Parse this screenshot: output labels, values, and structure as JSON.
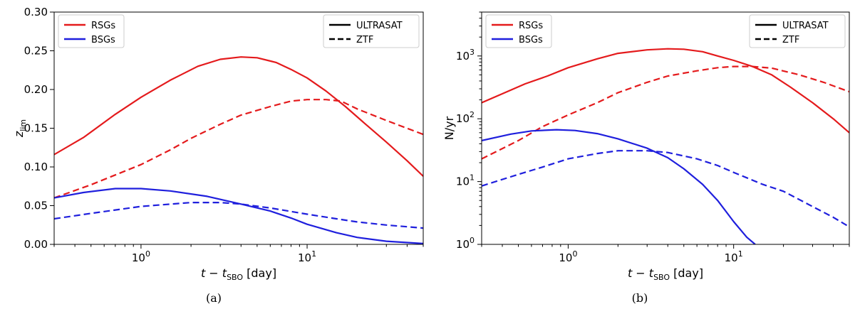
{
  "chart_data": [
    {
      "type": "line",
      "panel_caption": "(a)",
      "xlabel": {
        "main": "t − t",
        "sub": "SBO",
        "tail": " [day]"
      },
      "ylabel": {
        "main": "z",
        "sub": "lim"
      },
      "xscale": "log",
      "xlim": [
        0.3,
        50
      ],
      "yscale": "linear",
      "ylim": [
        0,
        0.3
      ],
      "yticks": [
        0.0,
        0.05,
        0.1,
        0.15,
        0.2,
        0.25,
        0.3
      ],
      "ytick_labels": [
        "0.00",
        "0.05",
        "0.10",
        "0.15",
        "0.20",
        "0.25",
        "0.30"
      ],
      "xticks": [
        {
          "value": 1,
          "base": "10",
          "exp": "0"
        },
        {
          "value": 10,
          "base": "10",
          "exp": "1"
        }
      ],
      "legend_color": {
        "position": "top-left",
        "entries": [
          {
            "label": "RSGs",
            "color": "#e41a1c"
          },
          {
            "label": "BSGs",
            "color": "#1f1fdd"
          }
        ]
      },
      "legend_style": {
        "position": "top-right",
        "entries": [
          {
            "label": "ULTRASAT",
            "dash": "solid"
          },
          {
            "label": "ZTF",
            "dash": "dashed"
          }
        ]
      },
      "series": [
        {
          "name": "RSGs",
          "instrument": "ULTRASAT",
          "color": "#e41a1c",
          "dash": "solid",
          "x": [
            0.3,
            0.45,
            0.7,
            1.0,
            1.5,
            2.2,
            3.0,
            4.0,
            5.0,
            6.5,
            8.0,
            10,
            13,
            17,
            22,
            30,
            40,
            50
          ],
          "y": [
            0.116,
            0.138,
            0.168,
            0.19,
            0.212,
            0.23,
            0.239,
            0.242,
            0.241,
            0.235,
            0.226,
            0.215,
            0.198,
            0.178,
            0.157,
            0.132,
            0.108,
            0.088
          ]
        },
        {
          "name": "RSGs",
          "instrument": "ZTF",
          "color": "#e41a1c",
          "dash": "dashed",
          "x": [
            0.3,
            0.5,
            1.0,
            1.5,
            2.0,
            3.0,
            4.0,
            6.0,
            8.0,
            10,
            13,
            16,
            20,
            30,
            50
          ],
          "y": [
            0.06,
            0.077,
            0.103,
            0.122,
            0.137,
            0.155,
            0.167,
            0.178,
            0.185,
            0.187,
            0.187,
            0.185,
            0.175,
            0.16,
            0.142
          ]
        },
        {
          "name": "BSGs",
          "instrument": "ULTRASAT",
          "color": "#1f1fdd",
          "dash": "solid",
          "x": [
            0.3,
            0.45,
            0.7,
            1.0,
            1.5,
            2.5,
            4.0,
            6.0,
            8.0,
            10,
            15,
            20,
            30,
            50
          ],
          "y": [
            0.06,
            0.067,
            0.072,
            0.072,
            0.069,
            0.062,
            0.052,
            0.043,
            0.034,
            0.026,
            0.015,
            0.009,
            0.004,
            0.001
          ]
        },
        {
          "name": "BSGs",
          "instrument": "ZTF",
          "color": "#1f1fdd",
          "dash": "dashed",
          "x": [
            0.3,
            0.5,
            1.0,
            2.0,
            3.0,
            4.0,
            6.0,
            10,
            15,
            20,
            30,
            50
          ],
          "y": [
            0.033,
            0.04,
            0.049,
            0.054,
            0.054,
            0.052,
            0.047,
            0.039,
            0.033,
            0.029,
            0.025,
            0.021
          ]
        }
      ]
    },
    {
      "type": "line",
      "panel_caption": "(b)",
      "xlabel": {
        "main": "t − t",
        "sub": "SBO",
        "tail": " [day]"
      },
      "ylabel": {
        "main": "N/yr",
        "sub": ""
      },
      "xscale": "log",
      "xlim": [
        0.3,
        50
      ],
      "yscale": "log",
      "ylim": [
        1,
        5000
      ],
      "yticks": [
        {
          "value": 1,
          "base": "10",
          "exp": "0"
        },
        {
          "value": 10,
          "base": "10",
          "exp": "1"
        },
        {
          "value": 100,
          "base": "10",
          "exp": "2"
        },
        {
          "value": 1000,
          "base": "10",
          "exp": "3"
        }
      ],
      "xticks": [
        {
          "value": 1,
          "base": "10",
          "exp": "0"
        },
        {
          "value": 10,
          "base": "10",
          "exp": "1"
        }
      ],
      "legend_color": {
        "position": "top-left",
        "entries": [
          {
            "label": "RSGs",
            "color": "#e41a1c"
          },
          {
            "label": "BSGs",
            "color": "#1f1fdd"
          }
        ]
      },
      "legend_style": {
        "position": "top-right",
        "entries": [
          {
            "label": "ULTRASAT",
            "dash": "solid"
          },
          {
            "label": "ZTF",
            "dash": "dashed"
          }
        ]
      },
      "series": [
        {
          "name": "RSGs",
          "instrument": "ULTRASAT",
          "color": "#e41a1c",
          "dash": "solid",
          "x": [
            0.3,
            0.4,
            0.55,
            0.75,
            1.0,
            1.5,
            2.0,
            3.0,
            4.0,
            5.0,
            6.5,
            8.0,
            10,
            13,
            17,
            22,
            30,
            40,
            50
          ],
          "y": [
            180,
            250,
            360,
            480,
            650,
            900,
            1100,
            1250,
            1300,
            1280,
            1170,
            1000,
            850,
            680,
            500,
            320,
            180,
            100,
            60
          ]
        },
        {
          "name": "RSGs",
          "instrument": "ZTF",
          "color": "#e41a1c",
          "dash": "dashed",
          "x": [
            0.3,
            0.5,
            0.7,
            1.0,
            1.5,
            2.0,
            3.0,
            4.0,
            6.0,
            8.0,
            10,
            13,
            17,
            25,
            35,
            50
          ],
          "y": [
            23,
            45,
            75,
            115,
            180,
            260,
            380,
            480,
            580,
            650,
            680,
            680,
            640,
            500,
            380,
            270
          ]
        },
        {
          "name": "BSGs",
          "instrument": "ULTRASAT",
          "color": "#1f1fdd",
          "dash": "solid",
          "x": [
            0.3,
            0.45,
            0.6,
            0.85,
            1.1,
            1.5,
            2.0,
            3.0,
            4.0,
            5.0,
            6.5,
            8.0,
            10,
            12,
            13.5
          ],
          "y": [
            45,
            57,
            64,
            67,
            65,
            58,
            48,
            34,
            24,
            16,
            9,
            5,
            2.3,
            1.3,
            1.0
          ]
        },
        {
          "name": "BSGs",
          "instrument": "ZTF",
          "color": "#1f1fdd",
          "dash": "dashed",
          "x": [
            0.3,
            0.5,
            0.7,
            1.0,
            1.5,
            2.0,
            3.0,
            4.0,
            6.0,
            8.0,
            10,
            15,
            20,
            30,
            40,
            50
          ],
          "y": [
            8.5,
            13,
            17,
            23,
            28,
            31,
            31,
            29,
            23,
            18,
            14,
            9,
            7,
            4,
            2.7,
            1.9
          ]
        }
      ]
    }
  ]
}
